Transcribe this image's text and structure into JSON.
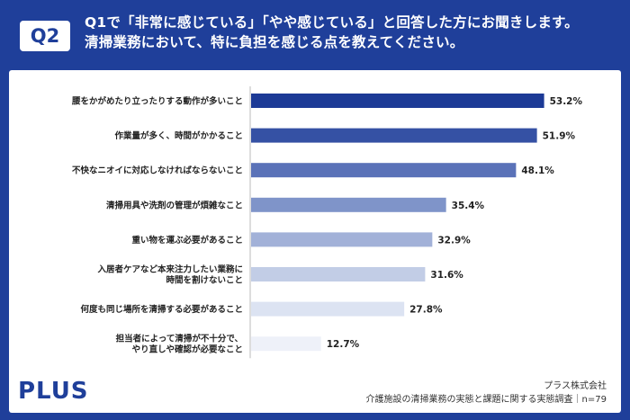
{
  "header": {
    "badge": "Q2",
    "question_line1": "Q1で「非常に感じている」「やや感じている」と回答した方にお聞きします。",
    "question_line2": "清掃業務において、特に負担を感じる点を教えてください。"
  },
  "footer": {
    "logo": "PLUS",
    "company": "プラス株式会社",
    "survey": "介護施設の清掃業務の実態と課題に関する実態調査｜n=79"
  },
  "chart_data": {
    "type": "bar",
    "orientation": "horizontal",
    "categories": [
      [
        "腰をかがめたり立ったりする動作が多いこと"
      ],
      [
        "作業量が多く、時間がかかること"
      ],
      [
        "不快なニオイに対応しなければならないこと"
      ],
      [
        "清掃用具や洗剤の管理が煩雑なこと"
      ],
      [
        "重い物を運ぶ必要があること"
      ],
      [
        "入居者ケアなど本来注力したい業務に",
        "時間を割けないこと"
      ],
      [
        "何度も同じ場所を清掃する必要があること"
      ],
      [
        "担当者によって清掃が不十分で、",
        "やり直しや確認が必要なこと"
      ]
    ],
    "values": [
      53.2,
      51.9,
      48.1,
      35.4,
      32.9,
      31.6,
      27.8,
      12.7
    ],
    "value_labels": [
      "53.2%",
      "51.9%",
      "48.1%",
      "35.4%",
      "32.9%",
      "31.6%",
      "27.8%",
      "12.7%"
    ],
    "colors": [
      "#1c3a96",
      "#3551a4",
      "#5a72b8",
      "#7f94c9",
      "#a2b1d8",
      "#c2cde6",
      "#dce3f2",
      "#eef1f9"
    ],
    "xlim": [
      0,
      100
    ],
    "grid": false
  }
}
